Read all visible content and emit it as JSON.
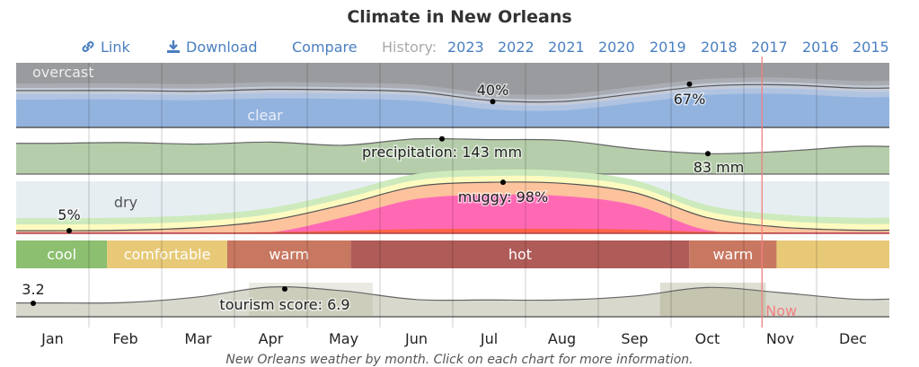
{
  "title": "Climate in New Orleans",
  "toolbar": {
    "link_label": "Link",
    "download_label": "Download",
    "compare_label": "Compare",
    "history_label": "History:",
    "years": [
      "2023",
      "2022",
      "2021",
      "2020",
      "2019",
      "2018",
      "2017",
      "2016",
      "2015"
    ]
  },
  "caption": "New Orleans weather by month. Click on each chart for more information.",
  "colors": {
    "overcast": "#9a9b9e",
    "clear": "#93b3df",
    "precip": "#b5cdaa",
    "dry": "#e6eef2",
    "muggy": "#ff69b4",
    "now_line": "#f08080",
    "link": "#4a7fc0"
  },
  "chart_data": {
    "type": "area",
    "months": [
      "Jan",
      "Feb",
      "Mar",
      "Apr",
      "May",
      "Jun",
      "Jul",
      "Aug",
      "Sep",
      "Oct",
      "Nov",
      "Dec"
    ],
    "now_label": "Now",
    "now_position_month": 10.25,
    "clouds": {
      "labels": {
        "top": "overcast",
        "bottom": "clear"
      },
      "clear_pct": [
        57,
        57,
        56,
        59,
        58,
        55,
        42,
        40,
        52,
        64,
        66,
        61
      ],
      "annotations": [
        {
          "text": "40%",
          "month": "Jul",
          "value": 40,
          "kind": "min"
        },
        {
          "text": "67%",
          "month": "Oct",
          "value": 67,
          "kind": "max"
        }
      ]
    },
    "precipitation": {
      "unit": "mm",
      "values_mm": [
        125,
        128,
        122,
        130,
        117,
        143,
        140,
        137,
        103,
        83,
        92,
        112
      ],
      "annotations": [
        {
          "text": "precipitation: 143 mm",
          "month": "Jun",
          "value": 143,
          "kind": "max"
        },
        {
          "text": "83 mm",
          "month": "Oct",
          "value": 83,
          "kind": "min"
        }
      ]
    },
    "humidity": {
      "labels": {
        "low": "dry",
        "high": "muggy"
      },
      "muggy_pct": [
        5,
        6,
        11,
        25,
        55,
        90,
        98,
        96,
        78,
        30,
        12,
        6
      ],
      "annotations": [
        {
          "text": "5%",
          "month": "Jan",
          "value": 5,
          "kind": "min"
        },
        {
          "text": "muggy: 98%",
          "month": "Jul",
          "value": 98,
          "kind": "max"
        }
      ]
    },
    "temperature_bands": [
      {
        "label": "cool",
        "start": 0.0,
        "end": 1.25,
        "color": "#8cbf6f"
      },
      {
        "label": "comfortable",
        "start": 1.25,
        "end": 2.9,
        "color": "#e7c977"
      },
      {
        "label": "warm",
        "start": 2.9,
        "end": 4.6,
        "color": "#c87760"
      },
      {
        "label": "hot",
        "start": 4.6,
        "end": 9.25,
        "color": "#af5b58"
      },
      {
        "label": "warm",
        "start": 9.25,
        "end": 10.45,
        "color": "#c87760"
      },
      {
        "label": "",
        "start": 10.45,
        "end": 12.0,
        "color": "#e7c977"
      },
      {
        "label": "",
        "start": 12.0,
        "end": 12.5,
        "color": "#8cbf6f"
      }
    ],
    "tourism": {
      "scale_max": 10,
      "values": [
        3.2,
        3.3,
        4.6,
        6.9,
        6.0,
        4.0,
        3.9,
        3.9,
        4.8,
        6.8,
        5.6,
        4.1
      ],
      "annotations": [
        {
          "text": "3.2",
          "month": "Jan",
          "value": 3.2,
          "kind": "min"
        },
        {
          "text": "tourism score: 6.9",
          "month": "Apr",
          "value": 6.9,
          "kind": "max"
        }
      ]
    }
  }
}
